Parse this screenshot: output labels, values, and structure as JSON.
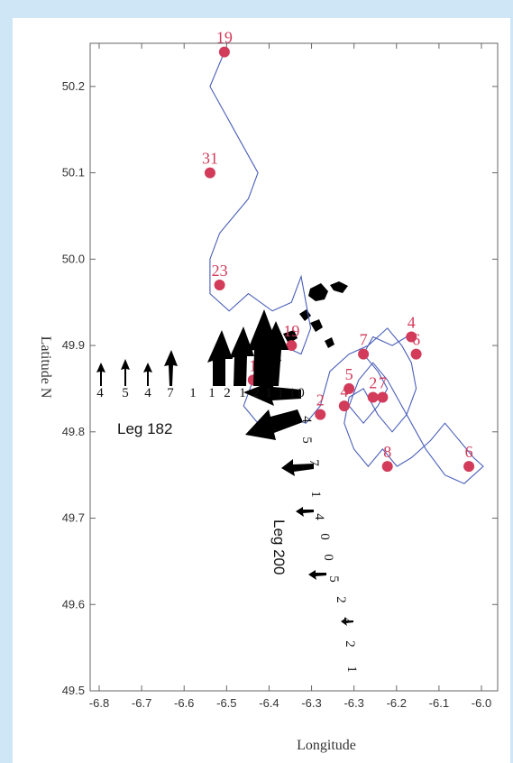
{
  "chart_data": {
    "type": "line",
    "xlabel": "Longitude",
    "ylabel": "Latitude N",
    "xlim": [
      -6.8,
      -5.95
    ],
    "ylim": [
      49.5,
      50.25
    ],
    "x_tick_labels": [
      "-6.8",
      "-6.7",
      "-6.6",
      "-6.5",
      "-6.4",
      "-6.3",
      "-6.3",
      "-6.2",
      "-6.1",
      "-6.0"
    ],
    "y_ticks": [
      49.5,
      49.6,
      49.7,
      49.8,
      49.9,
      50.0,
      50.1,
      50.2
    ],
    "y_tick_labels": [
      "49.5",
      "49.6",
      "49.7",
      "49.8",
      "49.9",
      "50.0",
      "50.1",
      "50.2"
    ],
    "track_color": "#4a5fb8",
    "marker_color": "#d23b5a",
    "vector_color": "#000000",
    "track": [
      [
        -6.52,
        50.24
      ],
      [
        -6.55,
        50.2
      ],
      [
        -6.52,
        50.17
      ],
      [
        -6.49,
        50.14
      ],
      [
        -6.45,
        50.1
      ],
      [
        -6.47,
        50.07
      ],
      [
        -6.5,
        50.05
      ],
      [
        -6.53,
        50.03
      ],
      [
        -6.55,
        50.0
      ],
      [
        -6.55,
        49.96
      ],
      [
        -6.51,
        49.94
      ],
      [
        -6.47,
        49.96
      ],
      [
        -6.42,
        49.94
      ],
      [
        -6.38,
        49.95
      ],
      [
        -6.36,
        49.98
      ],
      [
        -6.34,
        49.92
      ],
      [
        -6.36,
        49.89
      ],
      [
        -6.4,
        49.9
      ],
      [
        -6.43,
        49.87
      ],
      [
        -6.46,
        49.86
      ],
      [
        -6.48,
        49.83
      ],
      [
        -6.45,
        49.81
      ],
      [
        -6.4,
        49.82
      ],
      [
        -6.35,
        49.81
      ],
      [
        -6.32,
        49.83
      ],
      [
        -6.3,
        49.87
      ],
      [
        -6.26,
        49.89
      ],
      [
        -6.22,
        49.9
      ],
      [
        -6.18,
        49.92
      ],
      [
        -6.15,
        49.9
      ],
      [
        -6.13,
        49.88
      ],
      [
        -6.12,
        49.85
      ],
      [
        -6.14,
        49.82
      ],
      [
        -6.17,
        49.8
      ],
      [
        -6.2,
        49.82
      ],
      [
        -6.23,
        49.85
      ],
      [
        -6.26,
        49.84
      ],
      [
        -6.27,
        49.81
      ],
      [
        -6.25,
        49.78
      ],
      [
        -6.22,
        49.76
      ],
      [
        -6.19,
        49.78
      ],
      [
        -6.16,
        49.76
      ],
      [
        -6.13,
        49.77
      ],
      [
        -6.09,
        49.79
      ],
      [
        -6.06,
        49.81
      ],
      [
        -6.03,
        49.79
      ],
      [
        -6.0,
        49.77
      ],
      [
        -5.98,
        49.76
      ],
      [
        -6.02,
        49.74
      ],
      [
        -6.06,
        49.75
      ],
      [
        -6.1,
        49.78
      ],
      [
        -6.14,
        49.82
      ],
      [
        -6.18,
        49.86
      ],
      [
        -6.21,
        49.88
      ],
      [
        -6.24,
        49.86
      ],
      [
        -6.26,
        49.83
      ],
      [
        -6.23,
        49.81
      ],
      [
        -6.2,
        49.83
      ],
      [
        -6.18,
        49.85
      ],
      [
        -6.2,
        49.87
      ],
      [
        -6.23,
        49.89
      ],
      [
        -6.21,
        49.91
      ],
      [
        -6.17,
        49.9
      ],
      [
        -6.14,
        49.91
      ]
    ],
    "markers": [
      {
        "label": "19",
        "x": -6.52,
        "y": 50.24
      },
      {
        "label": "31",
        "x": -6.55,
        "y": 50.1
      },
      {
        "label": "23",
        "x": -6.53,
        "y": 49.97
      },
      {
        "label": "19",
        "x": -6.38,
        "y": 49.9
      },
      {
        "label": "18",
        "x": -6.43,
        "y": 49.87
      },
      {
        "label": "1",
        "x": -6.46,
        "y": 49.86
      },
      {
        "label": "2",
        "x": -6.32,
        "y": 49.82
      },
      {
        "label": "7",
        "x": -6.23,
        "y": 49.89
      },
      {
        "label": "4",
        "x": -6.13,
        "y": 49.91
      },
      {
        "label": "6",
        "x": -6.12,
        "y": 49.89
      },
      {
        "label": "5",
        "x": -6.26,
        "y": 49.85
      },
      {
        "label": "4",
        "x": -6.27,
        "y": 49.83
      },
      {
        "label": "2",
        "x": -6.21,
        "y": 49.84
      },
      {
        "label": "7",
        "x": -6.19,
        "y": 49.84
      },
      {
        "label": "8",
        "x": -6.18,
        "y": 49.76
      },
      {
        "label": "6",
        "x": -6.01,
        "y": 49.76
      }
    ],
    "annotations": [
      "Leg 182",
      "Leg 200"
    ],
    "leg182_labels": [
      "4",
      "5",
      "4",
      "7",
      "1",
      "1",
      "2",
      "1",
      "2",
      "1",
      "1",
      "1",
      "0"
    ],
    "leg200_labels": [
      "4",
      "5",
      "7",
      "1",
      "4",
      "0",
      "0",
      "5",
      "2",
      "4",
      "2",
      "1"
    ]
  }
}
